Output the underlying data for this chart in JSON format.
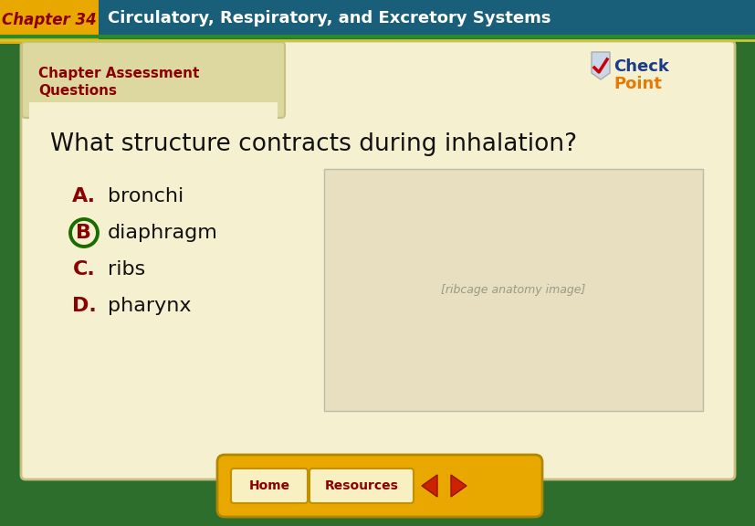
{
  "chapter_label": "Chapter 34",
  "chapter_title": "Circulatory, Respiratory, and Excretory Systems",
  "header_bg": "#1a5f7a",
  "chapter_label_bg": "#e8a800",
  "tab_text_line1": "Chapter Assessment",
  "tab_text_line2": "Questions",
  "tab_text_color": "#8b0000",
  "main_bg": "#2d6e2d",
  "card_bg": "#f5f0d0",
  "tab_bg": "#ddd8a0",
  "question": "What structure contracts during inhalation?",
  "question_color": "#111111",
  "answer_letters": [
    "A",
    "B",
    "C",
    "D"
  ],
  "answer_texts": [
    "bronchi",
    "diaphragm",
    "ribs",
    "pharynx"
  ],
  "answer_letter_color": "#8b0000",
  "answer_text_color": "#111111",
  "correct_answer_index": 1,
  "correct_circle_color": "#1a6b00",
  "header_text_color": "#ffffff",
  "bottom_bar_bg": "#e8a800",
  "btn_bg": "#f5d060",
  "btn_text_color": "#8b0000",
  "border_outer": "#1a5a1a",
  "border_inner": "#8aaa40",
  "card_edge": "#c8c080"
}
